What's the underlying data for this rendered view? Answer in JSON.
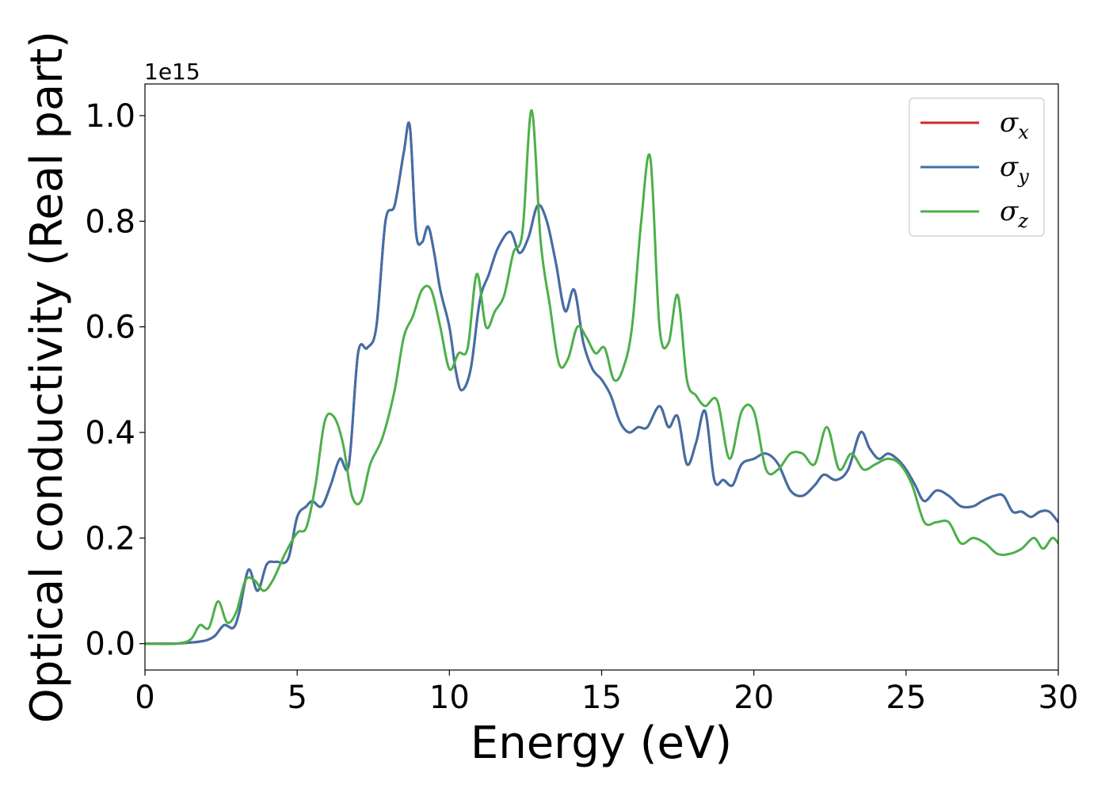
{
  "chart_data": {
    "type": "line",
    "title": "",
    "xlabel": "Energy (eV)",
    "ylabel": "Optical conductivity (Real part)",
    "y_offset_text": "1e15",
    "xlim": [
      0,
      30
    ],
    "ylim": [
      -0.05,
      1.06
    ],
    "xticks": [
      0,
      5,
      10,
      15,
      20,
      25,
      30
    ],
    "xtick_labels": [
      "0",
      "5",
      "10",
      "15",
      "20",
      "25",
      "30"
    ],
    "yticks": [
      0.0,
      0.2,
      0.4,
      0.6,
      0.8,
      1.0
    ],
    "ytick_labels": [
      "0.0",
      "0.2",
      "0.4",
      "0.6",
      "0.8",
      "1.0"
    ],
    "grid": false,
    "legend_position": "top-right",
    "series": [
      {
        "name": "σx",
        "legend_symbol": "σ",
        "legend_subscript": "x",
        "color": "#d62728",
        "x": [
          0,
          1,
          1.5,
          2,
          2.3,
          2.6,
          2.9,
          3.1,
          3.4,
          3.7,
          4,
          4.3,
          4.7,
          5,
          5.3,
          5.5,
          5.8,
          6.1,
          6.4,
          6.7,
          7,
          7.3,
          7.6,
          7.9,
          8.2,
          8.5,
          8.7,
          8.9,
          9.1,
          9.3,
          9.5,
          9.7,
          10,
          10.2,
          10.4,
          10.7,
          11,
          11.3,
          11.6,
          12,
          12.3,
          12.6,
          12.9,
          13.2,
          13.5,
          13.8,
          14.1,
          14.4,
          14.7,
          15,
          15.3,
          15.6,
          15.9,
          16.2,
          16.5,
          16.9,
          17.2,
          17.5,
          17.8,
          18.1,
          18.4,
          18.7,
          19,
          19.3,
          19.6,
          20,
          20.4,
          20.8,
          21.2,
          21.6,
          22,
          22.3,
          22.7,
          23.1,
          23.5,
          23.8,
          24.1,
          24.4,
          24.7,
          25,
          25.3,
          25.6,
          26,
          26.4,
          26.8,
          27.2,
          27.5,
          27.9,
          28.2,
          28.5,
          28.8,
          29.1,
          29.4,
          29.7,
          30
        ],
        "y": [
          0,
          0,
          0.002,
          0.006,
          0.015,
          0.035,
          0.03,
          0.06,
          0.14,
          0.1,
          0.15,
          0.155,
          0.16,
          0.24,
          0.26,
          0.27,
          0.26,
          0.3,
          0.35,
          0.34,
          0.55,
          0.56,
          0.6,
          0.8,
          0.83,
          0.93,
          0.98,
          0.78,
          0.76,
          0.79,
          0.74,
          0.67,
          0.6,
          0.52,
          0.48,
          0.52,
          0.65,
          0.7,
          0.75,
          0.78,
          0.74,
          0.77,
          0.83,
          0.8,
          0.72,
          0.63,
          0.67,
          0.57,
          0.52,
          0.5,
          0.47,
          0.42,
          0.4,
          0.41,
          0.41,
          0.45,
          0.41,
          0.43,
          0.34,
          0.38,
          0.44,
          0.31,
          0.31,
          0.3,
          0.34,
          0.35,
          0.36,
          0.34,
          0.29,
          0.28,
          0.3,
          0.32,
          0.31,
          0.33,
          0.4,
          0.37,
          0.35,
          0.36,
          0.35,
          0.33,
          0.3,
          0.27,
          0.29,
          0.28,
          0.26,
          0.26,
          0.27,
          0.28,
          0.28,
          0.25,
          0.25,
          0.24,
          0.25,
          0.25,
          0.23
        ]
      },
      {
        "name": "σy",
        "legend_symbol": "σ",
        "legend_subscript": "y",
        "color": "#3f6fa8",
        "x": [
          0,
          1,
          1.5,
          2,
          2.3,
          2.6,
          2.9,
          3.1,
          3.4,
          3.7,
          4,
          4.3,
          4.7,
          5,
          5.3,
          5.5,
          5.8,
          6.1,
          6.4,
          6.7,
          7,
          7.3,
          7.6,
          7.9,
          8.2,
          8.5,
          8.7,
          8.9,
          9.1,
          9.3,
          9.5,
          9.7,
          10,
          10.2,
          10.4,
          10.7,
          11,
          11.3,
          11.6,
          12,
          12.3,
          12.6,
          12.9,
          13.2,
          13.5,
          13.8,
          14.1,
          14.4,
          14.7,
          15,
          15.3,
          15.6,
          15.9,
          16.2,
          16.5,
          16.9,
          17.2,
          17.5,
          17.8,
          18.1,
          18.4,
          18.7,
          19,
          19.3,
          19.6,
          20,
          20.4,
          20.8,
          21.2,
          21.6,
          22,
          22.3,
          22.7,
          23.1,
          23.5,
          23.8,
          24.1,
          24.4,
          24.7,
          25,
          25.3,
          25.6,
          26,
          26.4,
          26.8,
          27.2,
          27.5,
          27.9,
          28.2,
          28.5,
          28.8,
          29.1,
          29.4,
          29.7,
          30
        ],
        "y": [
          0,
          0,
          0.002,
          0.006,
          0.015,
          0.035,
          0.03,
          0.06,
          0.14,
          0.1,
          0.15,
          0.155,
          0.16,
          0.24,
          0.26,
          0.27,
          0.26,
          0.3,
          0.35,
          0.34,
          0.55,
          0.56,
          0.6,
          0.8,
          0.83,
          0.93,
          0.98,
          0.78,
          0.76,
          0.79,
          0.74,
          0.67,
          0.6,
          0.52,
          0.48,
          0.52,
          0.65,
          0.7,
          0.75,
          0.78,
          0.74,
          0.77,
          0.83,
          0.8,
          0.72,
          0.63,
          0.67,
          0.57,
          0.52,
          0.5,
          0.47,
          0.42,
          0.4,
          0.41,
          0.41,
          0.45,
          0.41,
          0.43,
          0.34,
          0.38,
          0.44,
          0.31,
          0.31,
          0.3,
          0.34,
          0.35,
          0.36,
          0.34,
          0.29,
          0.28,
          0.3,
          0.32,
          0.31,
          0.33,
          0.4,
          0.37,
          0.35,
          0.36,
          0.35,
          0.33,
          0.3,
          0.27,
          0.29,
          0.28,
          0.26,
          0.26,
          0.27,
          0.28,
          0.28,
          0.25,
          0.25,
          0.24,
          0.25,
          0.25,
          0.23
        ]
      },
      {
        "name": "σz",
        "legend_symbol": "σ",
        "legend_subscript": "z",
        "color": "#4daf4a",
        "x": [
          0,
          1,
          1.5,
          1.8,
          2.1,
          2.4,
          2.7,
          3,
          3.3,
          3.6,
          3.9,
          4.2,
          4.6,
          5,
          5.3,
          5.6,
          5.9,
          6.2,
          6.5,
          6.8,
          7.1,
          7.4,
          7.8,
          8.2,
          8.5,
          8.8,
          9.1,
          9.4,
          9.7,
          10,
          10.3,
          10.6,
          10.9,
          11.2,
          11.5,
          11.8,
          12.1,
          12.4,
          12.7,
          13,
          13.3,
          13.6,
          13.9,
          14.2,
          14.5,
          14.8,
          15.1,
          15.4,
          15.7,
          16,
          16.3,
          16.6,
          16.9,
          17.2,
          17.5,
          17.8,
          18.1,
          18.4,
          18.8,
          19.2,
          19.6,
          20,
          20.4,
          20.8,
          21.2,
          21.6,
          22,
          22.4,
          22.8,
          23.2,
          23.6,
          24,
          24.4,
          24.8,
          25.2,
          25.6,
          26,
          26.4,
          26.8,
          27.2,
          27.6,
          28,
          28.4,
          28.8,
          29.2,
          29.5,
          29.8,
          30
        ],
        "y": [
          0,
          0,
          0.008,
          0.035,
          0.03,
          0.08,
          0.04,
          0.06,
          0.12,
          0.12,
          0.1,
          0.12,
          0.17,
          0.21,
          0.22,
          0.3,
          0.42,
          0.43,
          0.38,
          0.28,
          0.27,
          0.34,
          0.39,
          0.48,
          0.58,
          0.62,
          0.67,
          0.67,
          0.6,
          0.52,
          0.55,
          0.56,
          0.7,
          0.6,
          0.63,
          0.66,
          0.74,
          0.78,
          1.01,
          0.76,
          0.64,
          0.53,
          0.54,
          0.6,
          0.58,
          0.55,
          0.56,
          0.5,
          0.52,
          0.6,
          0.8,
          0.92,
          0.6,
          0.57,
          0.66,
          0.5,
          0.47,
          0.45,
          0.46,
          0.35,
          0.44,
          0.44,
          0.33,
          0.33,
          0.36,
          0.36,
          0.34,
          0.41,
          0.33,
          0.36,
          0.33,
          0.34,
          0.35,
          0.34,
          0.3,
          0.23,
          0.23,
          0.23,
          0.19,
          0.2,
          0.19,
          0.17,
          0.17,
          0.18,
          0.2,
          0.18,
          0.2,
          0.19
        ]
      }
    ]
  }
}
